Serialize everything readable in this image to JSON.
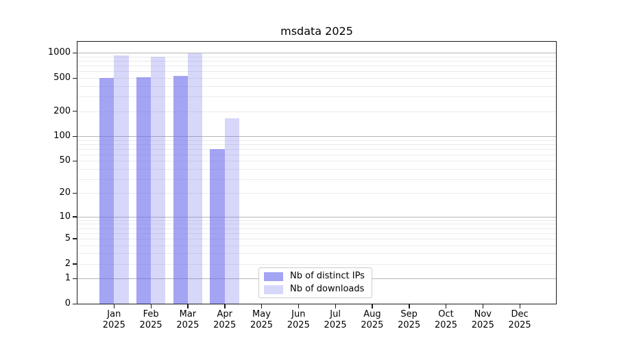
{
  "chart_data": {
    "type": "bar",
    "title": "msdata 2025",
    "categories": [
      "Jan",
      "Feb",
      "Mar",
      "Apr",
      "May",
      "Jun",
      "Jul",
      "Aug",
      "Sep",
      "Oct",
      "Nov",
      "Dec"
    ],
    "category_year": "2025",
    "series": [
      {
        "name": "Nb of distinct IPs",
        "color": "rgba(108,108,238,0.62)",
        "values": [
          500,
          510,
          530,
          70,
          0,
          0,
          0,
          0,
          0,
          0,
          0,
          0
        ]
      },
      {
        "name": "Nb of downloads",
        "color": "rgba(108,108,238,0.27)",
        "values": [
          930,
          900,
          990,
          165,
          0,
          0,
          0,
          0,
          0,
          0,
          0,
          0
        ]
      }
    ],
    "xlabel": "",
    "ylabel": "",
    "yscale": "log1p",
    "ylim": [
      0,
      1360
    ],
    "y_tick_labels": [
      0,
      1,
      2,
      5,
      10,
      20,
      50,
      100,
      200,
      500,
      1000
    ],
    "grid": {
      "major_gridlines": [
        1,
        10,
        100,
        1000
      ],
      "minor_gridlines": [
        2,
        3,
        4,
        5,
        6,
        7,
        8,
        9,
        20,
        30,
        40,
        50,
        60,
        70,
        80,
        90,
        200,
        300,
        400,
        500,
        600,
        700,
        800,
        900
      ],
      "major_color": "#b4b4b4",
      "minor_color": "#ebebeb"
    },
    "legend": {
      "position": "lower center",
      "entries": [
        "Nb of distinct IPs",
        "Nb of downloads"
      ]
    }
  }
}
